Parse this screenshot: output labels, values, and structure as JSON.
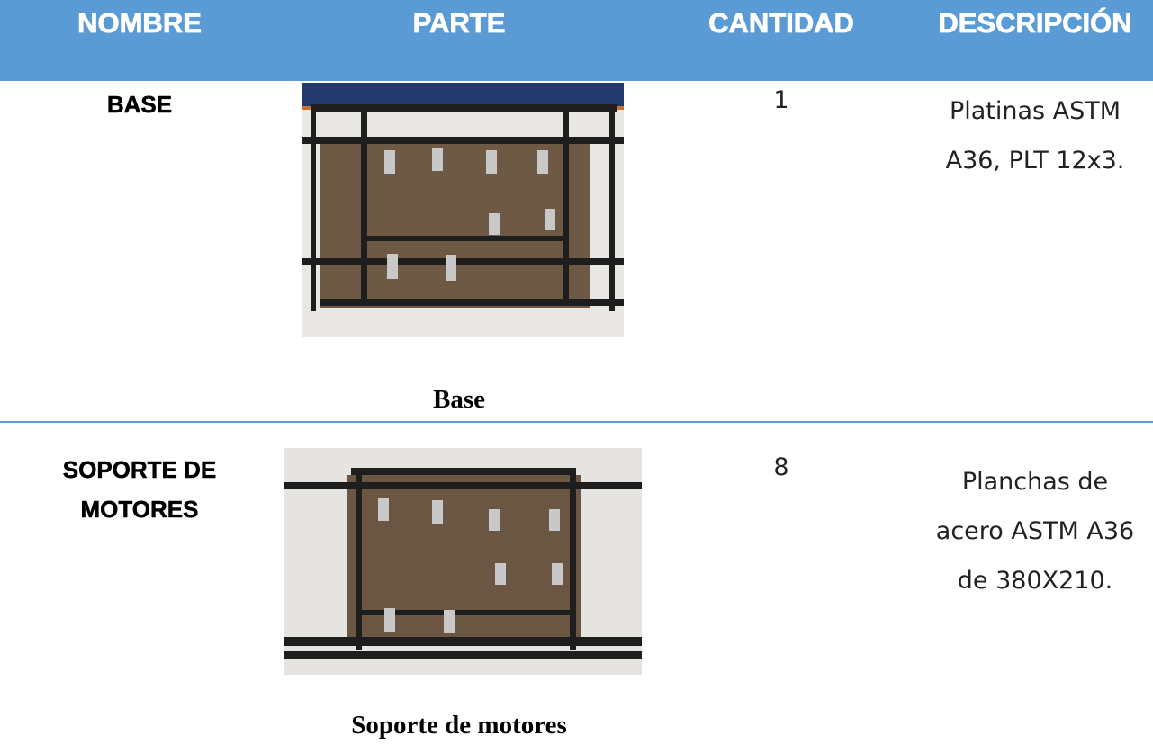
{
  "header": {
    "columns": [
      "NOMBRE",
      "PARTE",
      "CANTIDAD",
      "DESCRIPCIÓN"
    ]
  },
  "table": {
    "rows": [
      {
        "name": "BASE",
        "caption": "Base",
        "quantity": 1,
        "description": [
          "Platinas ASTM",
          "A36, PLT 12x3."
        ]
      },
      {
        "name": "SOPORTE DE MOTORES",
        "caption": "Soporte de motores",
        "quantity": 8,
        "description": [
          "Planchas de",
          "acero ASTM A36",
          "de 380X210."
        ]
      }
    ]
  }
}
